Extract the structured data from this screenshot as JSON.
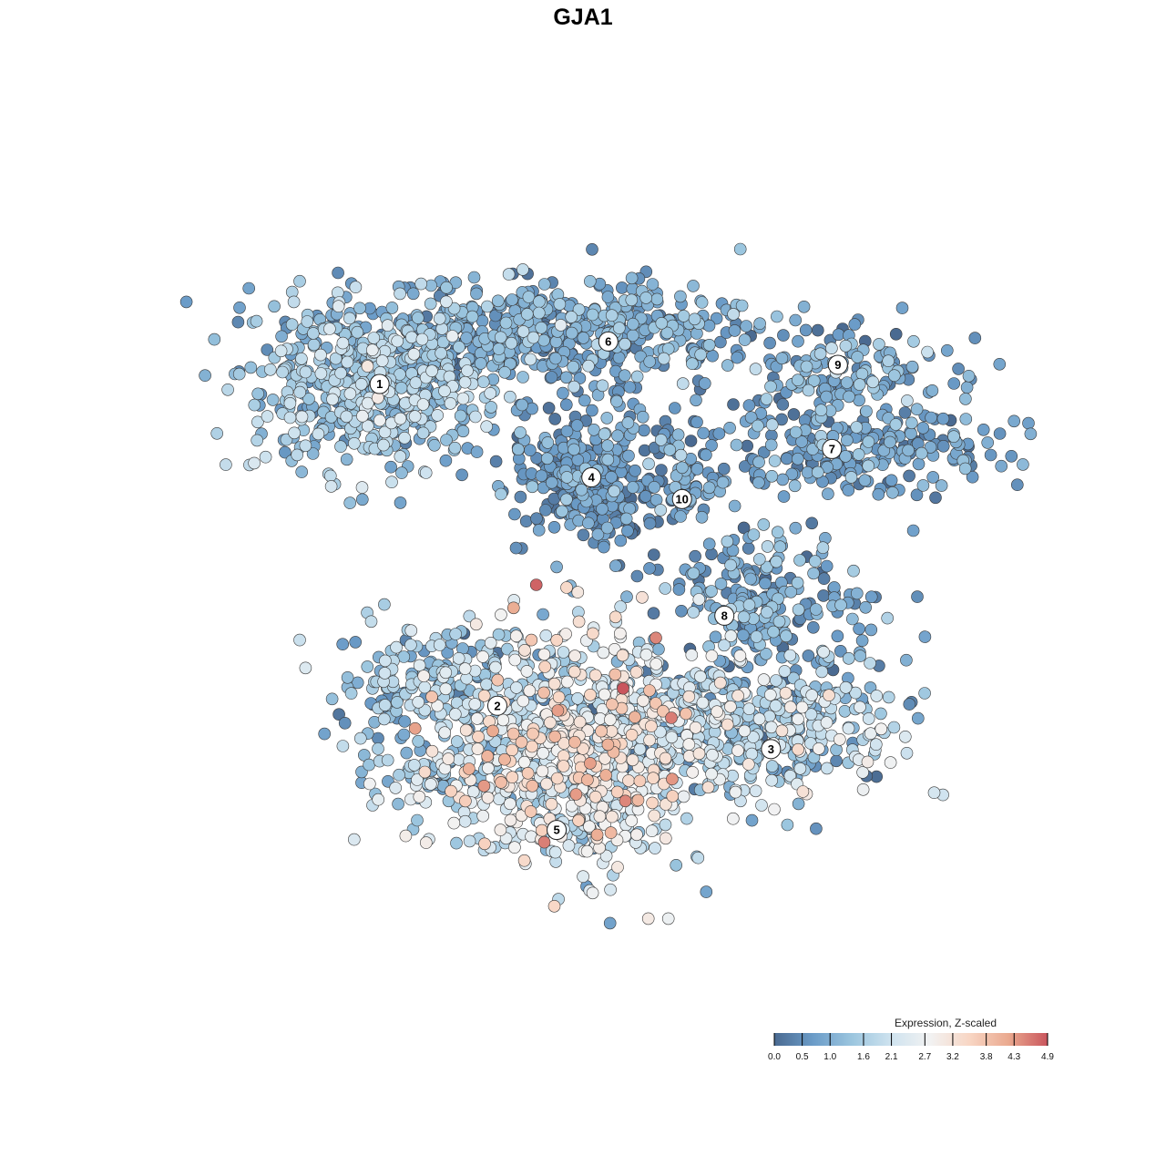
{
  "chart_data": {
    "type": "scatter",
    "title": "GJA1",
    "xlabel": "",
    "ylabel": "",
    "grid": false,
    "axes_visible": false,
    "xlim": [
      0,
      1
    ],
    "ylim": [
      0,
      1
    ],
    "color_scale": {
      "title": "Expression, Z-scaled",
      "min": 0.0,
      "max": 4.9,
      "ticks": [
        "0.0",
        "0.5",
        "1.0",
        "1.6",
        "2.1",
        "2.7",
        "3.2",
        "3.8",
        "4.3",
        "4.9"
      ],
      "colors": [
        "#4a6a91",
        "#6b9cc8",
        "#9cc6df",
        "#cfe3ef",
        "#f2f2f2",
        "#f8d6c4",
        "#eaa98f",
        "#c9555d"
      ],
      "legend_placement": "bottom-right"
    },
    "point_style": {
      "stroke": "#3a3a3a"
    },
    "clusters": [
      {
        "label": "1",
        "x": 0.228,
        "y": 0.729,
        "sx": 0.075,
        "sy": 0.05,
        "n": 520,
        "mean": 1.4,
        "sd": 0.55,
        "label_x": 0.233,
        "label_y": 0.736
      },
      {
        "label": "6",
        "x": 0.43,
        "y": 0.8,
        "sx": 0.125,
        "sy": 0.03,
        "n": 520,
        "mean": 0.9,
        "sd": 0.45,
        "label_x": 0.503,
        "label_y": 0.787
      },
      {
        "label": "4",
        "x": 0.48,
        "y": 0.63,
        "sx": 0.045,
        "sy": 0.045,
        "n": 330,
        "mean": 0.6,
        "sd": 0.4,
        "label_x": 0.483,
        "label_y": 0.624
      },
      {
        "label": "10",
        "x": 0.596,
        "y": 0.618,
        "sx": 0.022,
        "sy": 0.035,
        "n": 55,
        "mean": 0.8,
        "sd": 0.4,
        "label_x": 0.59,
        "label_y": 0.598
      },
      {
        "label": "9",
        "x": 0.78,
        "y": 0.752,
        "sx": 0.07,
        "sy": 0.025,
        "n": 130,
        "mean": 0.9,
        "sd": 0.45,
        "label_x": 0.774,
        "label_y": 0.759
      },
      {
        "label": "7",
        "x": 0.8,
        "y": 0.66,
        "sx": 0.09,
        "sy": 0.03,
        "n": 240,
        "mean": 0.8,
        "sd": 0.45,
        "label_x": 0.767,
        "label_y": 0.658
      },
      {
        "label": "8",
        "x": 0.69,
        "y": 0.48,
        "sx": 0.06,
        "sy": 0.04,
        "n": 200,
        "mean": 0.8,
        "sd": 0.45,
        "label_x": 0.64,
        "label_y": 0.458
      },
      {
        "label": "2",
        "x": 0.305,
        "y": 0.361,
        "sx": 0.06,
        "sy": 0.04,
        "n": 210,
        "mean": 1.3,
        "sd": 0.55,
        "label_x": 0.372,
        "label_y": 0.35
      },
      {
        "label": "3",
        "x": 0.68,
        "y": 0.33,
        "sx": 0.09,
        "sy": 0.045,
        "n": 460,
        "mean": 1.6,
        "sd": 0.75,
        "label_x": 0.695,
        "label_y": 0.298
      },
      {
        "label": "5",
        "x": 0.46,
        "y": 0.29,
        "sx": 0.08,
        "sy": 0.07,
        "n": 760,
        "mean": 2.4,
        "sd": 0.85,
        "label_x": 0.442,
        "label_y": 0.201
      },
      {
        "label": "",
        "x": 0.28,
        "y": 0.26,
        "sx": 0.03,
        "sy": 0.015,
        "n": 45,
        "mean": 1.4,
        "sd": 0.55
      }
    ]
  }
}
